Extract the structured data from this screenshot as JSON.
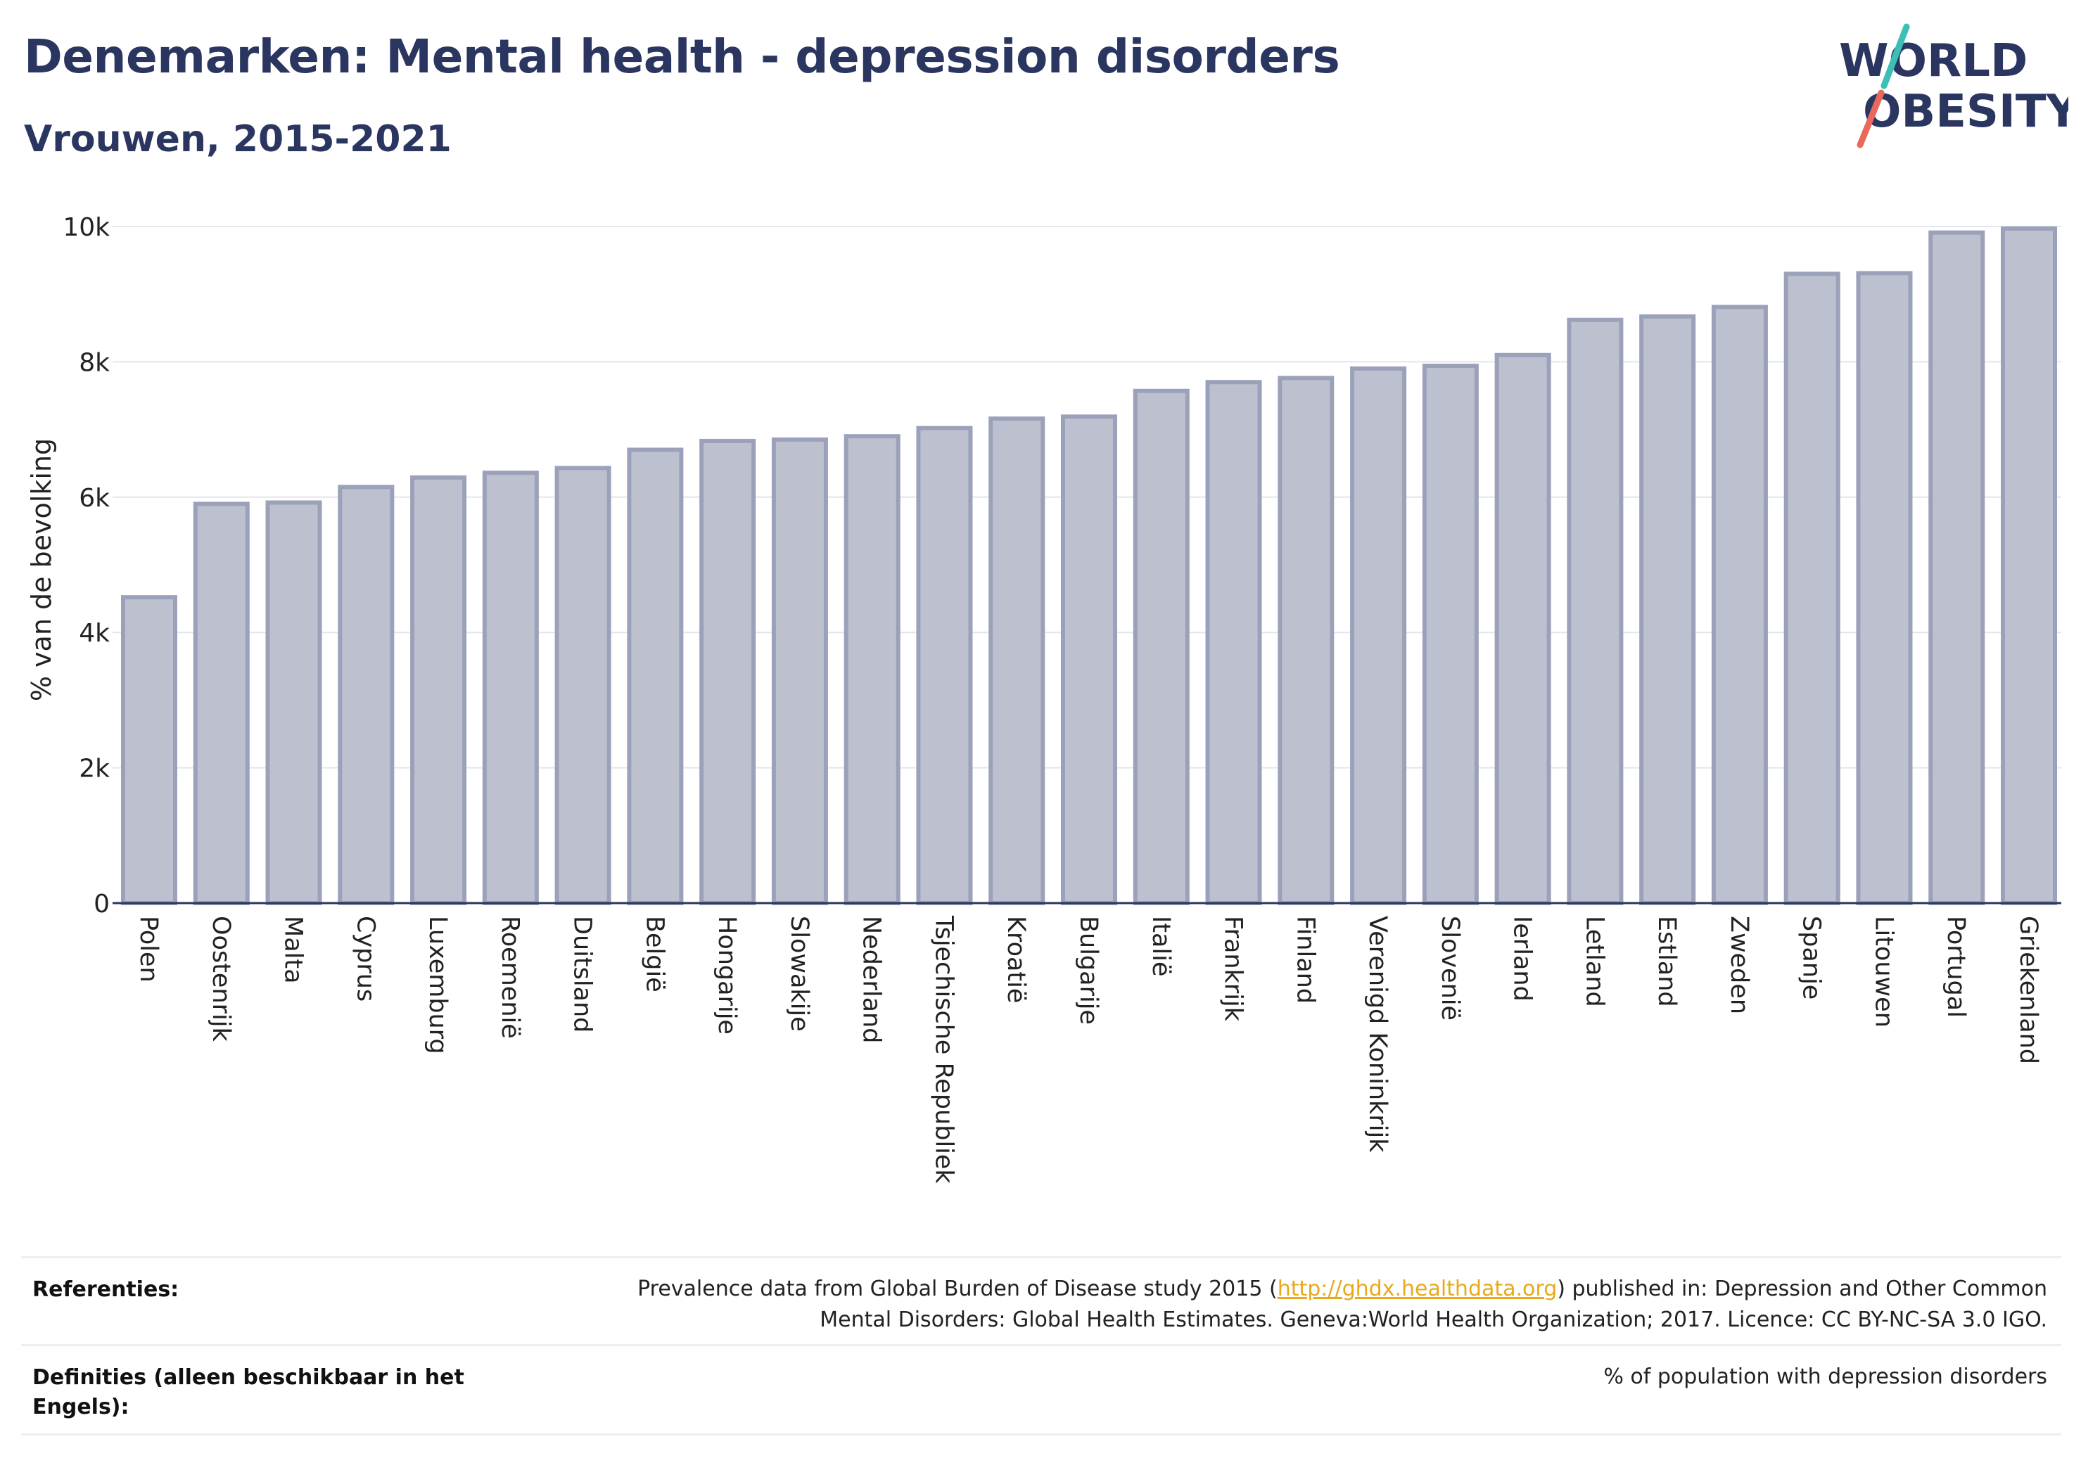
{
  "header": {
    "title": "Denemarken: Mental health - depression disorders",
    "subtitle": "Vrouwen, 2015-2021"
  },
  "logo": {
    "line1": "WORLD",
    "line2": "OBESITY",
    "accent_colors": [
      "#3bbfb6",
      "#e8695c"
    ]
  },
  "chart_data": {
    "type": "bar",
    "title": "Denemarken: Mental health - depression disorders",
    "subtitle": "Vrouwen, 2015-2021",
    "ylabel": "% van de bevolking",
    "xlabel": "",
    "ylim": [
      0,
      10000
    ],
    "yticks": [
      0,
      2000,
      4000,
      6000,
      8000,
      10000
    ],
    "ytick_labels": [
      "0",
      "2k",
      "4k",
      "6k",
      "8k",
      "10k"
    ],
    "grid": true,
    "bar_color": "#bdc1cf",
    "bar_edge_color": "#9ba1b9",
    "categories": [
      "Polen",
      "Oostenrijk",
      "Malta",
      "Cyprus",
      "Luxemburg",
      "Roemenië",
      "Duitsland",
      "België",
      "Hongarije",
      "Slowakije",
      "Nederland",
      "Tsjechische Republiek",
      "Kroatië",
      "Bulgarije",
      "Italië",
      "Frankrijk",
      "Finland",
      "Verenigd Koninkrijk",
      "Slovenië",
      "Ierland",
      "Letland",
      "Estland",
      "Zweden",
      "Spanje",
      "Litouwen",
      "Portugal",
      "Griekenland"
    ],
    "values": [
      4520,
      5900,
      5920,
      6150,
      6290,
      6360,
      6430,
      6700,
      6830,
      6850,
      6900,
      7020,
      7160,
      7190,
      7570,
      7700,
      7760,
      7900,
      7940,
      8100,
      8620,
      8670,
      8810,
      9300,
      9310,
      9910,
      9970
    ]
  },
  "references": {
    "label": "Referenties:",
    "text_before": "Prevalence data from Global Burden of Disease study 2015 (",
    "link": "http://ghdx.healthdata.org",
    "text_after": ") published in: Depression and Other Common",
    "text_line2": "Mental Disorders: Global Health Estimates. Geneva:World Health Organization; 2017. Licence: CC BY-NC-SA 3.0 IGO."
  },
  "definitions": {
    "label": "Definities (alleen beschikbaar in het Engels):",
    "text": "% of population with depression disorders"
  }
}
